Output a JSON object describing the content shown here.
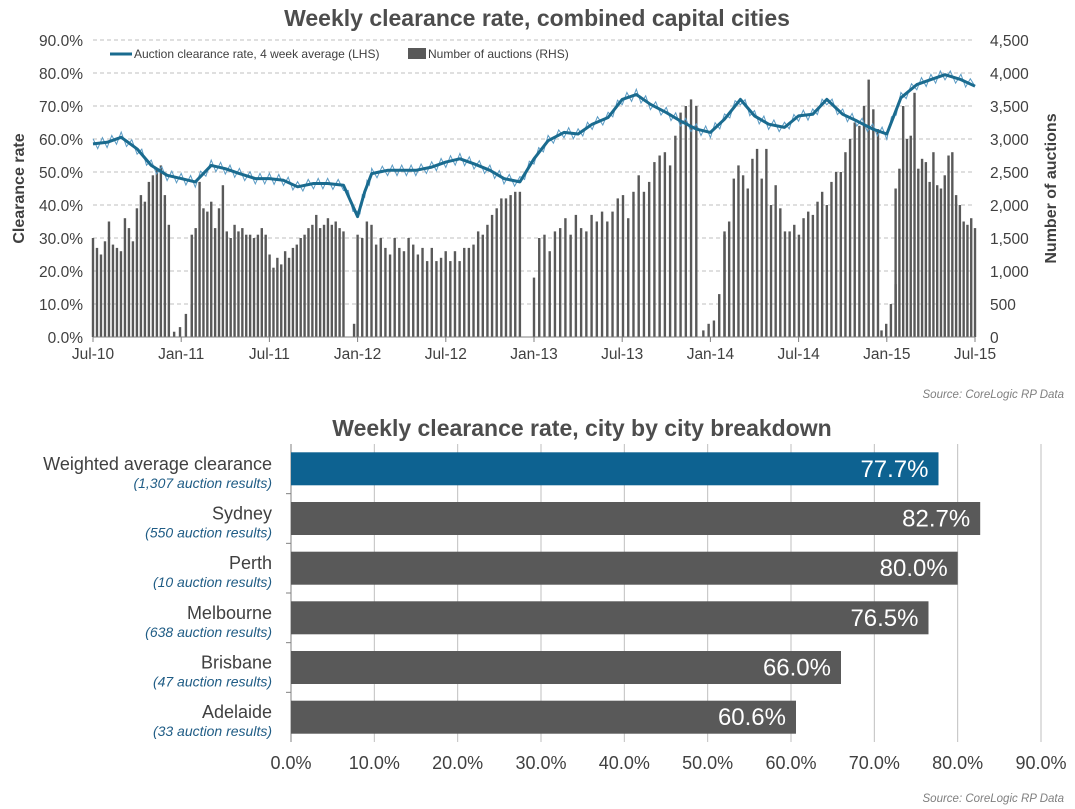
{
  "chart_data": [
    {
      "type": "line+bar",
      "title": "Weekly clearance rate, combined capital cities",
      "ylabel_left": "Clearance rate",
      "ylabel_right": "Number of auctions",
      "ylim_left": [
        0,
        90
      ],
      "ylim_right": [
        0,
        4500
      ],
      "yticks_left": [
        "0.0%",
        "10.0%",
        "20.0%",
        "30.0%",
        "40.0%",
        "50.0%",
        "60.0%",
        "70.0%",
        "80.0%",
        "90.0%"
      ],
      "yticks_right": [
        "0",
        "500",
        "1,000",
        "1,500",
        "2,000",
        "2,500",
        "3,000",
        "3,500",
        "4,000",
        "4,500"
      ],
      "xticks": [
        "Jul-10",
        "Jan-11",
        "Jul-11",
        "Jan-12",
        "Jul-12",
        "Jan-13",
        "Jul-13",
        "Jan-14",
        "Jul-14",
        "Jan-15",
        "Jul-15"
      ],
      "grid": true,
      "legend_position": "top-left",
      "source": "Source: CoreLogic RP Data",
      "colors": {
        "line": "#1a6b8f",
        "bars": "#595959",
        "grid": "#bfbfbf"
      },
      "series": [
        {
          "name": "Auction clearance rate, 4 week average (LHS)",
          "type": "line",
          "axis": "left",
          "x": [
            2010.5,
            2010.58,
            2010.66,
            2010.75,
            2010.83,
            2010.92,
            2011.0,
            2011.08,
            2011.17,
            2011.25,
            2011.33,
            2011.42,
            2011.5,
            2011.58,
            2011.66,
            2011.75,
            2011.83,
            2011.92,
            2012.0,
            2012.04,
            2012.08,
            2012.17,
            2012.25,
            2012.33,
            2012.42,
            2012.5,
            2012.58,
            2012.66,
            2012.75,
            2012.83,
            2012.92,
            2013.0,
            2013.08,
            2013.17,
            2013.25,
            2013.33,
            2013.42,
            2013.5,
            2013.58,
            2013.66,
            2013.75,
            2013.83,
            2013.92,
            2014.0,
            2014.08,
            2014.17,
            2014.25,
            2014.33,
            2014.42,
            2014.5,
            2014.58,
            2014.66,
            2014.75,
            2014.83,
            2014.92,
            2015.0,
            2015.08,
            2015.17,
            2015.25,
            2015.33,
            2015.42,
            2015.5
          ],
          "values": [
            58.5,
            59.0,
            60.5,
            57.0,
            52.0,
            49.0,
            48.0,
            47.0,
            52.0,
            51.0,
            49.5,
            48.0,
            48.0,
            47.5,
            45.5,
            46.5,
            46.5,
            46.0,
            36.5,
            44.0,
            49.5,
            50.5,
            50.5,
            50.5,
            51.5,
            53.0,
            54.0,
            52.5,
            50.5,
            48.0,
            47.0,
            54.0,
            59.5,
            62.0,
            61.5,
            64.5,
            66.5,
            72.0,
            73.5,
            70.5,
            68.0,
            65.5,
            63.0,
            62.0,
            66.0,
            72.0,
            67.0,
            64.5,
            63.5,
            67.0,
            67.5,
            72.0,
            67.5,
            65.5,
            63.0,
            61.5,
            72.5,
            76.5,
            78.0,
            79.5,
            78.0,
            76.0
          ]
        },
        {
          "name": "Number of auctions (RHS)",
          "type": "bar",
          "axis": "right",
          "segments": [
            {
              "x_start": 2010.5,
              "x_end": 2010.93,
              "values": [
                1500,
                1350,
                1250,
                1450,
                1750,
                1400,
                1350,
                1300,
                1800,
                1650,
                1450,
                1950,
                2150,
                2050,
                2350,
                2450,
                2550,
                2600,
                2150,
                1700
              ]
            },
            {
              "x_start": 2010.96,
              "x_end": 2011.06,
              "values": [
                80,
                150,
                350,
                500
              ]
            },
            {
              "x_start": 2011.06,
              "x_end": 2011.92,
              "values": [
                1550,
                1650,
                2350,
                1950,
                1900,
                2050,
                1650,
                1950,
                2300,
                1600,
                1500,
                1700,
                1600,
                1650,
                1550,
                1550,
                1500,
                1550,
                1650,
                1550,
                1250,
                1050,
                1200,
                1100,
                1300,
                1200,
                1350,
                1400,
                1500,
                1550,
                1650,
                1700,
                1850,
                1650,
                1700,
                1800,
                1700,
                1750,
                1650,
                1600
              ]
            },
            {
              "x_start": 2011.98,
              "x_end": 2012.0,
              "values": [
                200
              ]
            },
            {
              "x_start": 2012.0,
              "x_end": 2012.92,
              "values": [
                1550,
                1500,
                1750,
                1700,
                1400,
                1500,
                1350,
                1250,
                1500,
                1350,
                1300,
                1500,
                1400,
                1250,
                1350,
                1150,
                1350,
                1150,
                1200,
                1300,
                1150,
                1300,
                1150,
                1350,
                1350,
                1400,
                1600,
                1550,
                1700,
                1850,
                1950,
                2100,
                2100,
                2150,
                2200,
                2200
              ]
            },
            {
              "x_start": 2013.0,
              "x_end": 2013.92,
              "values": [
                900,
                1500,
                1550,
                1300,
                1600,
                1650,
                1800,
                1550,
                1850,
                1650,
                1600,
                1850,
                1750,
                1900,
                1750,
                1900,
                2100,
                2150,
                1800,
                2200,
                2450,
                2200,
                2350,
                2650,
                2750,
                2800,
                2600,
                3050,
                3400,
                3500,
                3600,
                3500
              ]
            },
            {
              "x_start": 2013.96,
              "x_end": 2014.08,
              "values": [
                100,
                200,
                250,
                650,
                1550
              ]
            },
            {
              "x_start": 2014.08,
              "x_end": 2014.95,
              "values": [
                1600,
                1750,
                2400,
                2600,
                2450,
                2250,
                2700,
                2850,
                2400,
                2850,
                2000,
                2300,
                1950,
                1600,
                1600,
                1700,
                1550,
                1800,
                1900,
                1850,
                2050,
                2200,
                2000,
                2350,
                2500,
                2500,
                2800,
                3000,
                3250,
                3200,
                3500,
                3900,
                3450,
                3150
              ]
            },
            {
              "x_start": 2014.97,
              "x_end": 2015.05,
              "values": [
                100,
                200,
                500,
                800
              ]
            },
            {
              "x_start": 2015.05,
              "x_end": 2015.5,
              "values": [
                2250,
                2550,
                3500,
                3000,
                3050,
                3700,
                2550,
                2700,
                2650,
                2350,
                2800,
                2300,
                2250,
                2450,
                2750,
                2800,
                2150,
                2000,
                1750,
                1700,
                1800,
                1650
              ]
            }
          ]
        }
      ]
    },
    {
      "type": "bar",
      "orientation": "horizontal",
      "title": "Weekly clearance rate, city by city breakdown",
      "xlim": [
        0,
        90
      ],
      "xticks": [
        "0.0%",
        "10.0%",
        "20.0%",
        "30.0%",
        "40.0%",
        "50.0%",
        "60.0%",
        "70.0%",
        "80.0%",
        "90.0%"
      ],
      "grid": true,
      "source": "Source: CoreLogic RP Data",
      "colors": {
        "highlight": "#0d6291",
        "bars": "#595959",
        "sublabel": "#1f5c85"
      },
      "categories": [
        {
          "label": "Weighted average clearance",
          "sublabel": "(1,307 auction results)",
          "value": 77.7,
          "value_label": "77.7%",
          "highlight": true
        },
        {
          "label": "Sydney",
          "sublabel": "(550 auction results)",
          "value": 82.7,
          "value_label": "82.7%",
          "highlight": false
        },
        {
          "label": "Perth",
          "sublabel": "(10 auction results)",
          "value": 80.0,
          "value_label": "80.0%",
          "highlight": false
        },
        {
          "label": "Melbourne",
          "sublabel": "(638 auction results)",
          "value": 76.5,
          "value_label": "76.5%",
          "highlight": false
        },
        {
          "label": "Brisbane",
          "sublabel": "(47 auction results)",
          "value": 66.0,
          "value_label": "66.0%",
          "highlight": false
        },
        {
          "label": "Adelaide",
          "sublabel": "(33 auction results)",
          "value": 60.6,
          "value_label": "60.6%",
          "highlight": false
        }
      ]
    }
  ]
}
